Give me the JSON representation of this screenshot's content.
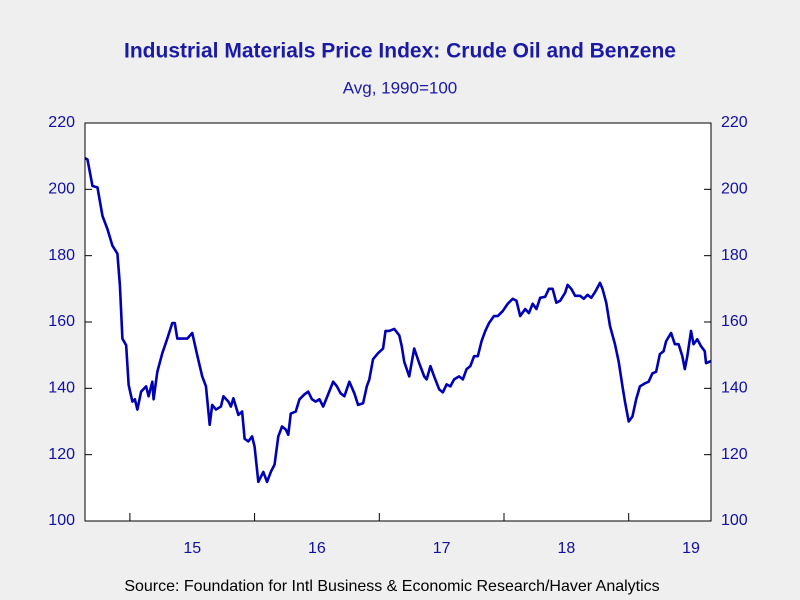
{
  "chart_data": {
    "type": "line",
    "title": "Industrial Materials Price Index: Crude Oil and Benzene",
    "subtitle": "Avg, 1990=100",
    "source": "Source:  Foundation for Intl Business & Economic Research/Haver Analytics",
    "x": [
      2014.64,
      2014.66,
      2014.7,
      2014.74,
      2014.78,
      2014.82,
      2014.86,
      2014.9,
      2014.92,
      2014.94,
      2014.97,
      2014.99,
      2015.02,
      2015.04,
      2015.06,
      2015.09,
      2015.13,
      2015.15,
      2015.18,
      2015.19,
      2015.22,
      2015.26,
      2015.3,
      2015.34,
      2015.36,
      2015.38,
      2015.42,
      2015.46,
      2015.5,
      2015.54,
      2015.58,
      2015.61,
      2015.64,
      2015.66,
      2015.69,
      2015.73,
      2015.75,
      2015.79,
      2015.81,
      2015.83,
      2015.87,
      2015.9,
      2015.92,
      2015.95,
      2015.98,
      2016.0,
      2016.03,
      2016.07,
      2016.1,
      2016.13,
      2016.16,
      2016.19,
      2016.22,
      2016.25,
      2016.27,
      2016.29,
      2016.33,
      2016.36,
      2016.4,
      2016.43,
      2016.46,
      2016.49,
      2016.52,
      2016.55,
      2016.59,
      2016.63,
      2016.66,
      2016.69,
      2016.72,
      2016.76,
      2016.8,
      2016.83,
      2016.87,
      2016.9,
      2016.92,
      2016.95,
      2016.99,
      2017.03,
      2017.05,
      2017.08,
      2017.12,
      2017.16,
      2017.18,
      2017.2,
      2017.24,
      2017.28,
      2017.32,
      2017.36,
      2017.38,
      2017.41,
      2017.44,
      2017.48,
      2017.51,
      2017.54,
      2017.57,
      2017.6,
      2017.64,
      2017.67,
      2017.7,
      2017.73,
      2017.76,
      2017.79,
      2017.82,
      2017.85,
      2017.88,
      2017.92,
      2017.95,
      2017.99,
      2018.03,
      2018.07,
      2018.1,
      2018.13,
      2018.17,
      2018.2,
      2018.23,
      2018.26,
      2018.29,
      2018.33,
      2018.36,
      2018.39,
      2018.42,
      2018.45,
      2018.49,
      2018.51,
      2018.54,
      2018.57,
      2018.61,
      2018.64,
      2018.67,
      2018.7,
      2018.73,
      2018.77,
      2018.79,
      2018.82,
      2018.85,
      2018.89,
      2018.92,
      2018.95,
      2018.97,
      2019.0,
      2019.03,
      2019.06,
      2019.09,
      2019.13,
      2019.16,
      2019.19,
      2019.22,
      2019.25,
      2019.28,
      2019.3,
      2019.34,
      2019.37,
      2019.4,
      2019.43,
      2019.45,
      2019.47,
      2019.5,
      2019.52,
      2019.55,
      2019.58,
      2019.61,
      2019.62,
      2019.66
    ],
    "series": [
      {
        "name": "Crude Oil and Benzene",
        "color": "#0000b4",
        "values": [
          209.4,
          209,
          201,
          200.6,
          192,
          188,
          183,
          180.6,
          171,
          155,
          153,
          141,
          136,
          136.7,
          133.6,
          139,
          140.6,
          137.6,
          142,
          136.7,
          145,
          150.6,
          155,
          159.7,
          159.7,
          155,
          155,
          155,
          156.7,
          150,
          143.6,
          140.6,
          129,
          135,
          133.6,
          134.5,
          137.6,
          136,
          134.5,
          137,
          132,
          133,
          124.8,
          124,
          125.5,
          122.4,
          111.8,
          114.8,
          111.8,
          114.8,
          117,
          125.5,
          128.5,
          127.6,
          126,
          132.4,
          133,
          136.7,
          138.2,
          139,
          136.7,
          136,
          136.7,
          134.5,
          138.2,
          142,
          140.6,
          138.5,
          137.6,
          142,
          138.5,
          135,
          135.5,
          140.6,
          142.7,
          148.8,
          150.6,
          152,
          157.3,
          157.3,
          157.9,
          156,
          152.7,
          148,
          143.6,
          152,
          147.6,
          143.6,
          142.7,
          146.7,
          143.6,
          139.7,
          138.8,
          141.2,
          140.6,
          142.7,
          143.6,
          142.7,
          145.8,
          146.7,
          149.7,
          149.7,
          154.2,
          157.3,
          159.7,
          161.8,
          161.8,
          163.3,
          165.5,
          167,
          166.4,
          161.8,
          163.9,
          162.7,
          165.5,
          163.9,
          167.3,
          167.6,
          170,
          170,
          165.8,
          166.4,
          168.8,
          171.2,
          170,
          167.9,
          167.9,
          167,
          168.2,
          167.3,
          169,
          171.8,
          170,
          165.8,
          158.8,
          153.3,
          148,
          140.6,
          136,
          130,
          131.5,
          136.7,
          140.6,
          141.5,
          142,
          144.5,
          145,
          150.3,
          151.2,
          154.2,
          156.7,
          153.3,
          153.3,
          149.7,
          145.8,
          149.7,
          157.3,
          153.3,
          154.8,
          152.7,
          151.2,
          147.6,
          148.2
        ]
      }
    ],
    "xlim": [
      2014.64,
      2019.66
    ],
    "xticks": [
      2015,
      2016,
      2017,
      2018,
      2019
    ],
    "xtick_labels": [
      {
        "value": 2015.5,
        "label": "15"
      },
      {
        "value": 2016.5,
        "label": "16"
      },
      {
        "value": 2017.5,
        "label": "17"
      },
      {
        "value": 2018.5,
        "label": "18"
      },
      {
        "value": 2019.5,
        "label": "19"
      }
    ],
    "ylim": [
      100,
      220
    ],
    "yticks": [
      100,
      120,
      140,
      160,
      180,
      200,
      220
    ],
    "y2lim": [
      100,
      220
    ],
    "y2ticks": [
      100,
      120,
      140,
      160,
      180,
      200,
      220
    ]
  }
}
